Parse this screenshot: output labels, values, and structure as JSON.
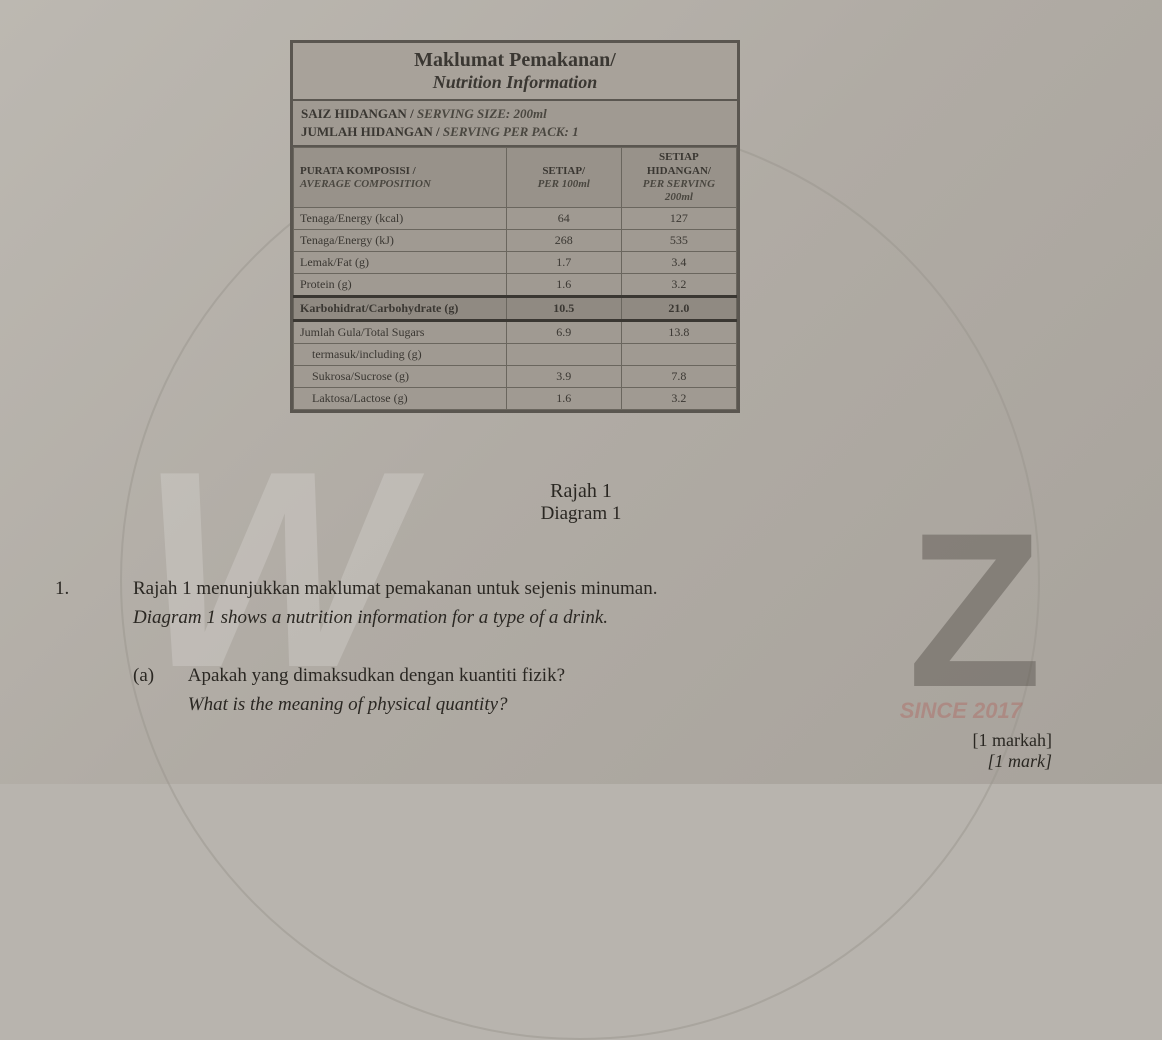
{
  "nutrition": {
    "title_my": "Maklumat Pemakanan/",
    "title_en": "Nutrition Information",
    "serving_size_my": "SAIZ HIDANGAN /",
    "serving_size_en": "SERVING SIZE: 200ml",
    "serving_per_pack_my": "JUMLAH HIDANGAN /",
    "serving_per_pack_en": "SERVING PER PACK: 1",
    "header_col1_my": "PURATA KOMPOSISI /",
    "header_col1_en": "AVERAGE COMPOSITION",
    "header_col2_my": "SETIAP/",
    "header_col2_en": "PER 100ml",
    "header_col3_my": "SETIAP HIDANGAN/",
    "header_col3_en": "PER SERVING 200ml",
    "rows": [
      {
        "label": "Tenaga/Energy (kcal)",
        "per100": "64",
        "perServ": "127"
      },
      {
        "label": "Tenaga/Energy (kJ)",
        "per100": "268",
        "perServ": "535"
      },
      {
        "label": "Lemak/Fat (g)",
        "per100": "1.7",
        "perServ": "3.4"
      },
      {
        "label": "Protein (g)",
        "per100": "1.6",
        "perServ": "3.2"
      }
    ],
    "carb_row": {
      "label": "Karbohidrat/Carbohydrate (g)",
      "per100": "10.5",
      "perServ": "21.0"
    },
    "sugar_row": {
      "label": "Jumlah Gula/Total Sugars",
      "per100": "6.9",
      "perServ": "13.8"
    },
    "including_label": "termasuk/including (g)",
    "sub_rows": [
      {
        "label": "Sukrosa/Sucrose (g)",
        "per100": "3.9",
        "perServ": "7.8"
      },
      {
        "label": "Laktosa/Lactose (g)",
        "per100": "1.6",
        "perServ": "3.2"
      }
    ]
  },
  "caption": {
    "line1": "Rajah 1",
    "line2": "Diagram 1"
  },
  "question": {
    "number": "1.",
    "stem_my": "Rajah 1 menunjukkan maklumat pemakanan untuk sejenis minuman.",
    "stem_en": "Diagram 1 shows a nutrition information for a type of a drink.",
    "part_a_label": "(a)",
    "part_a_my": "Apakah yang dimaksudkan dengan kuantiti fizik?",
    "part_a_en": "What is the meaning of physical quantity?",
    "marks_my": "[1 markah]",
    "marks_en": "[1 mark]"
  },
  "watermark": {
    "text": "W",
    "z": "Z",
    "since": "SINCE 2017"
  }
}
